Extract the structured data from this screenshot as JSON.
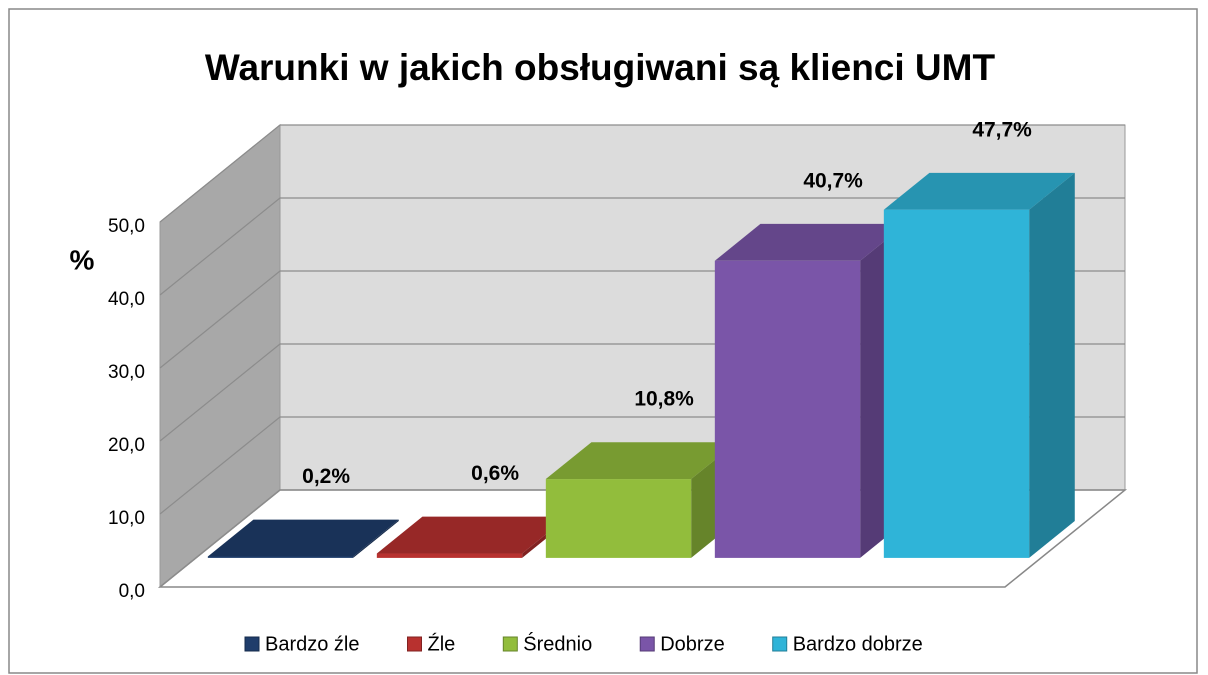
{
  "chart_data": {
    "type": "bar3d",
    "title": "Warunki w jakich obsługiwani są klienci UMT",
    "y_label": "%",
    "categories": [
      "Bardzo źle",
      "Źle",
      "Średnio",
      "Dobrze",
      "Bardzo dobrze"
    ],
    "values": [
      0.2,
      0.6,
      10.8,
      40.7,
      47.7
    ],
    "value_labels": [
      "0,2%",
      "0,6%",
      "10,8%",
      "40,7%",
      "47,7%"
    ],
    "colors": [
      "#1f3d6b",
      "#b8312f",
      "#92bd3c",
      "#7a55a8",
      "#2fb4d8"
    ],
    "ylim": [
      0,
      50
    ],
    "yticks": [
      {
        "value": 0,
        "label": "0,0"
      },
      {
        "value": 10,
        "label": "10,0"
      },
      {
        "value": 20,
        "label": "20,0"
      },
      {
        "value": 30,
        "label": "30,0"
      },
      {
        "value": 40,
        "label": "40,0"
      },
      {
        "value": 50,
        "label": "50,0"
      }
    ],
    "grid": true,
    "legend": "bottom"
  }
}
